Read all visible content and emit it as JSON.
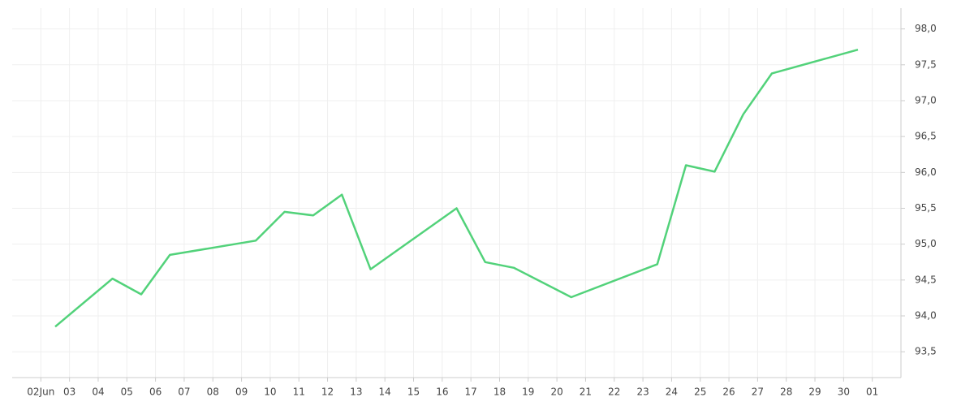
{
  "chart_data": {
    "type": "line",
    "xticks": [
      "02Jun",
      "03",
      "04",
      "05",
      "06",
      "07",
      "08",
      "09",
      "10",
      "11",
      "12",
      "13",
      "14",
      "15",
      "16",
      "17",
      "18",
      "19",
      "20",
      "21",
      "22",
      "23",
      "24",
      "25",
      "26",
      "27",
      "28",
      "29",
      "30",
      "01"
    ],
    "x": [
      "02Jun",
      "04",
      "05",
      "06",
      "09",
      "10",
      "11",
      "12",
      "13",
      "16",
      "17",
      "18",
      "20",
      "23",
      "24",
      "25",
      "26",
      "27",
      "30"
    ],
    "series": [
      {
        "color": "#52d27a",
        "values": [
          93.85,
          94.52,
          94.3,
          94.85,
          95.05,
          95.45,
          95.4,
          95.69,
          94.65,
          95.5,
          94.75,
          94.67,
          94.26,
          94.72,
          96.1,
          96.01,
          96.81,
          97.38,
          97.71
        ]
      }
    ],
    "ylim": [
      93.14,
      98.29
    ],
    "yticks": [
      {
        "value": 93.5,
        "label": "93,5"
      },
      {
        "value": 94,
        "label": "94,0"
      },
      {
        "value": 94.5,
        "label": "94,5"
      },
      {
        "value": 95,
        "label": "95,0"
      },
      {
        "value": 95.5,
        "label": "95,5"
      },
      {
        "value": 96,
        "label": "96,0"
      },
      {
        "value": 96.5,
        "label": "96,5"
      },
      {
        "value": 97,
        "label": "97,0"
      },
      {
        "value": 97.5,
        "label": "97,5"
      },
      {
        "value": 98,
        "label": "98,0"
      }
    ],
    "grid": true
  }
}
